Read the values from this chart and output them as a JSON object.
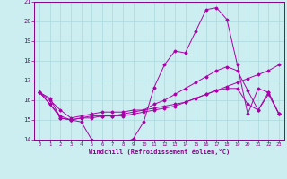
{
  "xlabel": "Windchill (Refroidissement éolien,°C)",
  "background_color": "#cceef0",
  "grid_color": "#aad8dc",
  "line_color": "#aa00aa",
  "xlim": [
    -0.5,
    23.5
  ],
  "ylim": [
    14,
    21
  ],
  "xticks": [
    0,
    1,
    2,
    3,
    4,
    5,
    6,
    7,
    8,
    9,
    10,
    11,
    12,
    13,
    14,
    15,
    16,
    17,
    18,
    19,
    20,
    21,
    22,
    23
  ],
  "yticks": [
    14,
    15,
    16,
    17,
    18,
    19,
    20,
    21
  ],
  "line1_x": [
    0,
    1,
    2,
    3,
    4,
    5,
    6,
    7,
    8,
    9,
    10,
    11,
    12,
    13,
    14,
    15,
    16,
    17,
    18,
    19,
    20,
    21,
    22,
    23
  ],
  "line1_y": [
    16.4,
    16.1,
    15.1,
    15.0,
    14.9,
    14.0,
    13.85,
    13.8,
    13.8,
    14.05,
    14.9,
    16.65,
    17.8,
    18.5,
    18.4,
    19.5,
    20.6,
    20.7,
    20.1,
    17.8,
    15.3,
    16.6,
    16.4,
    15.3
  ],
  "line2_x": [
    0,
    1,
    2,
    3,
    4,
    5,
    6,
    7,
    8,
    9,
    10,
    11,
    12,
    13,
    14,
    15,
    16,
    17,
    18,
    19,
    20,
    21,
    22,
    23
  ],
  "line2_y": [
    16.4,
    15.8,
    15.2,
    15.0,
    15.1,
    15.1,
    15.2,
    15.2,
    15.2,
    15.3,
    15.4,
    15.5,
    15.6,
    15.7,
    15.9,
    16.1,
    16.3,
    16.5,
    16.7,
    16.9,
    17.1,
    17.3,
    17.5,
    17.8
  ],
  "line3_x": [
    0,
    1,
    2,
    3,
    4,
    5,
    6,
    7,
    8,
    9,
    10,
    11,
    12,
    13,
    14,
    15,
    16,
    17,
    18,
    19,
    20,
    21,
    22,
    23
  ],
  "line3_y": [
    16.4,
    15.8,
    15.1,
    15.0,
    15.1,
    15.2,
    15.2,
    15.2,
    15.3,
    15.4,
    15.5,
    15.6,
    15.7,
    15.8,
    15.9,
    16.1,
    16.3,
    16.5,
    16.6,
    16.6,
    15.8,
    15.5,
    16.3,
    15.3
  ],
  "line4_x": [
    0,
    1,
    2,
    3,
    4,
    5,
    6,
    7,
    8,
    9,
    10,
    11,
    12,
    13,
    14,
    15,
    16,
    17,
    18,
    19,
    20,
    21,
    22,
    23
  ],
  "line4_y": [
    16.4,
    16.0,
    15.5,
    15.1,
    15.2,
    15.3,
    15.4,
    15.4,
    15.4,
    15.5,
    15.5,
    15.8,
    16.0,
    16.3,
    16.6,
    16.9,
    17.2,
    17.5,
    17.7,
    17.5,
    16.5,
    15.5,
    16.4,
    15.3
  ]
}
